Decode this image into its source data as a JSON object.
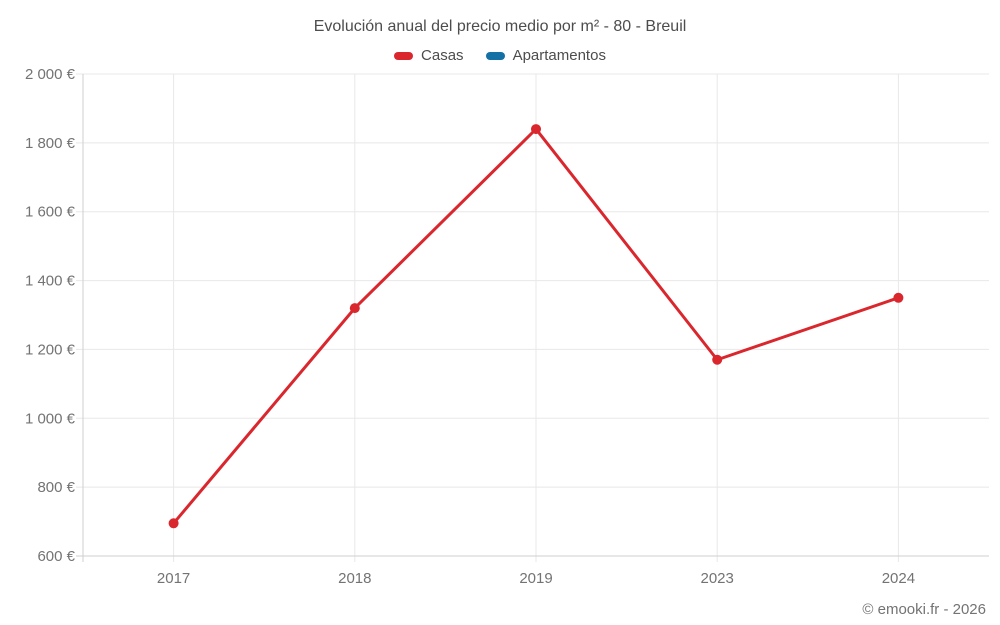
{
  "footer": "© emooki.fr - 2026",
  "chart_data": {
    "type": "line",
    "title": "Evolución anual del precio medio por m² - 80 - Breuil",
    "categories": [
      "2017",
      "2018",
      "2019",
      "2023",
      "2024"
    ],
    "series": [
      {
        "name": "Casas",
        "color": "#da272e",
        "values": [
          695,
          1320,
          1840,
          1170,
          1350
        ]
      },
      {
        "name": "Apartamentos",
        "color": "#1471a5",
        "values": []
      }
    ],
    "xlabel": "",
    "ylabel": "",
    "ylim": [
      600,
      2000
    ],
    "y_step": 200,
    "y_tick_labels": [
      "600 €",
      "800 €",
      "1 000 €",
      "1 200 €",
      "1 400 €",
      "1 600 €",
      "1 800 €",
      "2 000 €"
    ],
    "grid": true,
    "legend_position": "top",
    "colors": {
      "gridline": "#e8e8e8",
      "axis": "#cfcfcf",
      "tick_text": "#737373",
      "title_text": "#4d4d4d"
    }
  }
}
